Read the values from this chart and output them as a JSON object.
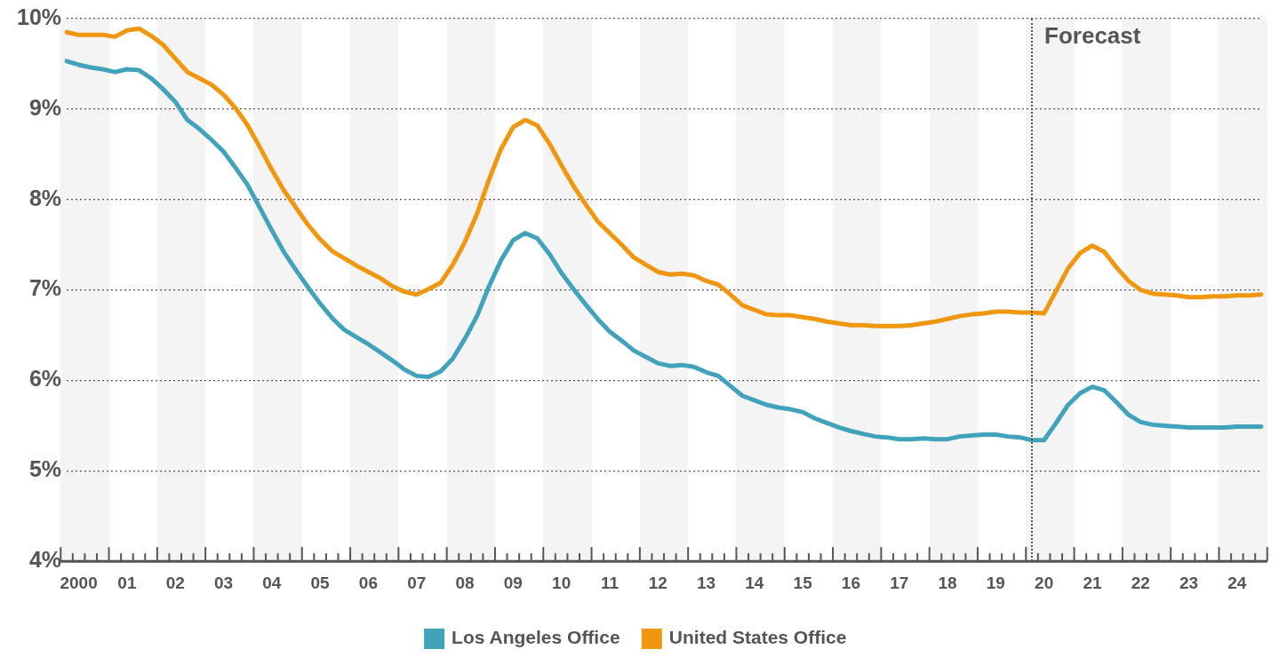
{
  "chart_data": {
    "type": "line",
    "ylim": [
      4,
      10
    ],
    "yticks": [
      {
        "value": 4,
        "label": "4%"
      },
      {
        "value": 5,
        "label": "5%"
      },
      {
        "value": 6,
        "label": "6%"
      },
      {
        "value": 7,
        "label": "7%"
      },
      {
        "value": 8,
        "label": "8%"
      },
      {
        "value": 9,
        "label": "9%"
      },
      {
        "value": 10,
        "label": "10%"
      }
    ],
    "categories": [
      null,
      "2000",
      null,
      null,
      null,
      "01",
      null,
      null,
      null,
      "02",
      null,
      null,
      null,
      "03",
      null,
      null,
      null,
      "04",
      null,
      null,
      null,
      "05",
      null,
      null,
      null,
      "06",
      null,
      null,
      null,
      "07",
      null,
      null,
      null,
      "08",
      null,
      null,
      null,
      "09",
      null,
      null,
      null,
      "10",
      null,
      null,
      null,
      "11",
      null,
      null,
      null,
      "12",
      null,
      null,
      null,
      "13",
      null,
      null,
      null,
      "14",
      null,
      null,
      null,
      "15",
      null,
      null,
      null,
      "16",
      null,
      null,
      null,
      "17",
      null,
      null,
      null,
      "18",
      null,
      null,
      null,
      "19",
      null,
      null,
      null,
      "20",
      null,
      null,
      null,
      "21",
      null,
      null,
      null,
      "22",
      null,
      null,
      null,
      "23",
      null,
      null,
      null,
      "24",
      null,
      null
    ],
    "grid": "y",
    "legend": "bottom",
    "marker": "none",
    "line_style": "solid",
    "annotations": [
      "Forecast"
    ],
    "series": [
      {
        "name": "Los Angeles Office",
        "color": "#41a3bb",
        "values": [
          9.53,
          9.49,
          9.46,
          9.44,
          9.41,
          9.44,
          9.43,
          9.34,
          9.22,
          9.08,
          8.88,
          8.78,
          8.66,
          8.53,
          8.35,
          8.16,
          7.91,
          7.66,
          7.42,
          7.22,
          7.03,
          6.85,
          6.69,
          6.56,
          6.48,
          6.4,
          6.31,
          6.22,
          6.12,
          6.05,
          6.04,
          6.1,
          6.24,
          6.46,
          6.71,
          7.04,
          7.33,
          7.55,
          7.63,
          7.57,
          7.4,
          7.19,
          7.01,
          6.84,
          6.68,
          6.54,
          6.44,
          6.33,
          6.26,
          6.19,
          6.16,
          6.17,
          6.15,
          6.09,
          6.05,
          5.94,
          5.83,
          5.78,
          5.73,
          5.7,
          5.68,
          5.65,
          5.58,
          5.53,
          5.48,
          5.44,
          5.41,
          5.38,
          5.37,
          5.35,
          5.35,
          5.36,
          5.35,
          5.35,
          5.38,
          5.39,
          5.4,
          5.4,
          5.38,
          5.37,
          5.34,
          5.34,
          5.53,
          5.73,
          5.86,
          5.93,
          5.89,
          5.76,
          5.62,
          5.54,
          5.51,
          5.5,
          5.49,
          5.48,
          5.48,
          5.48,
          5.48,
          5.49,
          5.49,
          5.49
        ]
      },
      {
        "name": "United States Office",
        "color": "#f0960f",
        "values": [
          9.85,
          9.82,
          9.82,
          9.82,
          9.8,
          9.87,
          9.89,
          9.81,
          9.71,
          9.56,
          9.41,
          9.34,
          9.27,
          9.16,
          9.01,
          8.82,
          8.58,
          8.33,
          8.1,
          7.91,
          7.72,
          7.56,
          7.43,
          7.35,
          7.27,
          7.2,
          7.13,
          7.04,
          6.98,
          6.95,
          7.01,
          7.08,
          7.28,
          7.53,
          7.84,
          8.22,
          8.56,
          8.8,
          8.88,
          8.82,
          8.62,
          8.38,
          8.15,
          7.95,
          7.76,
          7.63,
          7.5,
          7.36,
          7.28,
          7.2,
          7.17,
          7.18,
          7.16,
          7.1,
          7.06,
          6.95,
          6.83,
          6.78,
          6.73,
          6.72,
          6.72,
          6.7,
          6.68,
          6.65,
          6.63,
          6.61,
          6.61,
          6.6,
          6.6,
          6.6,
          6.61,
          6.63,
          6.65,
          6.68,
          6.71,
          6.73,
          6.74,
          6.76,
          6.76,
          6.75,
          6.75,
          6.74,
          6.99,
          7.24,
          7.41,
          7.49,
          7.42,
          7.25,
          7.1,
          7.0,
          6.96,
          6.95,
          6.94,
          6.92,
          6.92,
          6.93,
          6.93,
          6.94,
          6.94,
          6.95
        ]
      }
    ]
  }
}
